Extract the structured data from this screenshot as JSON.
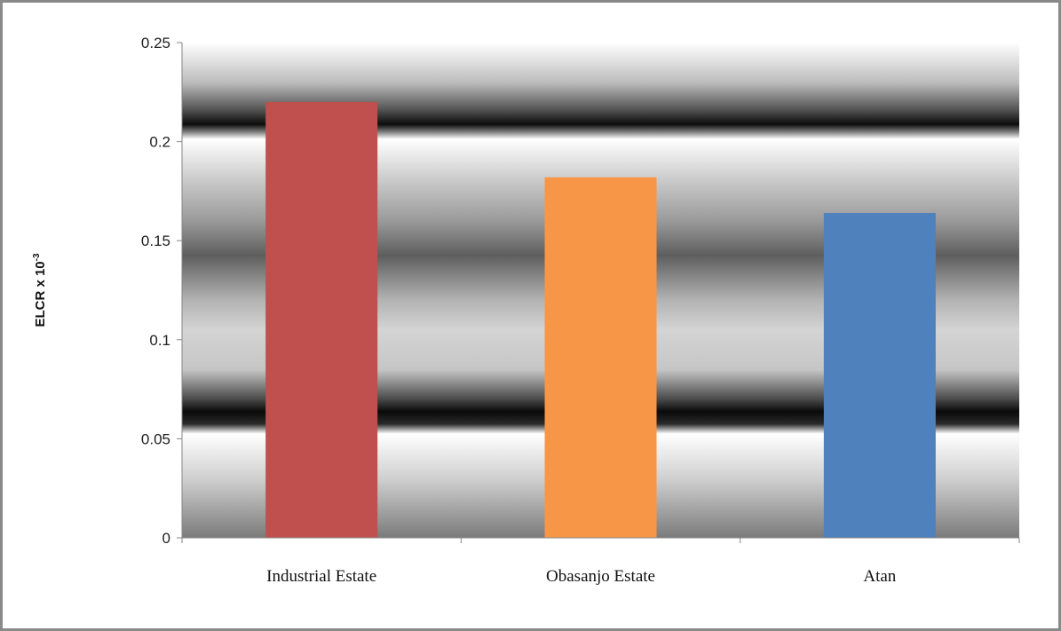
{
  "chart_data": {
    "type": "bar",
    "categories": [
      "Industrial Estate",
      "Obasanjo Estate",
      "Atan"
    ],
    "values": [
      0.22,
      0.182,
      0.164
    ],
    "colors": [
      "#c0504d",
      "#f79646",
      "#4f81bd"
    ],
    "ylabel": "ELCR x 10",
    "ylabel_superscript": "-3",
    "ylim": [
      0,
      0.25
    ],
    "yticks": [
      "0",
      "0.05",
      "0.1",
      "0.15",
      "0.2",
      "0.25"
    ],
    "ytick_values": [
      0,
      0.05,
      0.1,
      0.15,
      0.2,
      0.25
    ],
    "background": "horizontal gray gradient bands",
    "grid": false,
    "legend": "none"
  }
}
